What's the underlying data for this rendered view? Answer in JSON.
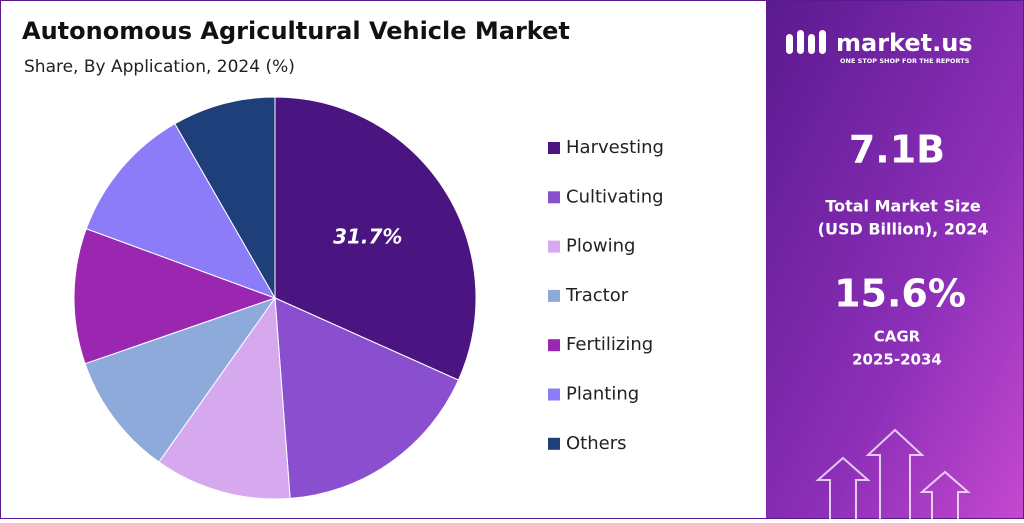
{
  "chart_data": {
    "type": "pie",
    "title": "Autonomous Agricultural Vehicle Market",
    "subtitle": "Share, By Application, 2024 (%)",
    "categories": [
      "Harvesting",
      "Cultivating",
      "Plowing",
      "Tractor",
      "Fertilizing",
      "Planting",
      "Others"
    ],
    "values": [
      31.7,
      17.1,
      11.0,
      9.9,
      10.9,
      11.1,
      8.3
    ],
    "value_labels": [
      "31.7%",
      null,
      null,
      null,
      null,
      null,
      null
    ],
    "colors": [
      "#4a1580",
      "#8a4fcf",
      "#d6a9ef",
      "#8eaadb",
      "#9b27b0",
      "#8c7cf7",
      "#1f3f7a"
    ],
    "legend": "right"
  },
  "side_panel": {
    "brand": "market.us",
    "tagline": "ONE STOP SHOP FOR THE REPORTS",
    "market_size": "7.1B",
    "market_size_label": [
      "Total Market Size",
      "(USD Billion), 2024"
    ],
    "cagr": "15.6%",
    "cagr_label": [
      "CAGR",
      "2025-2034"
    ]
  }
}
